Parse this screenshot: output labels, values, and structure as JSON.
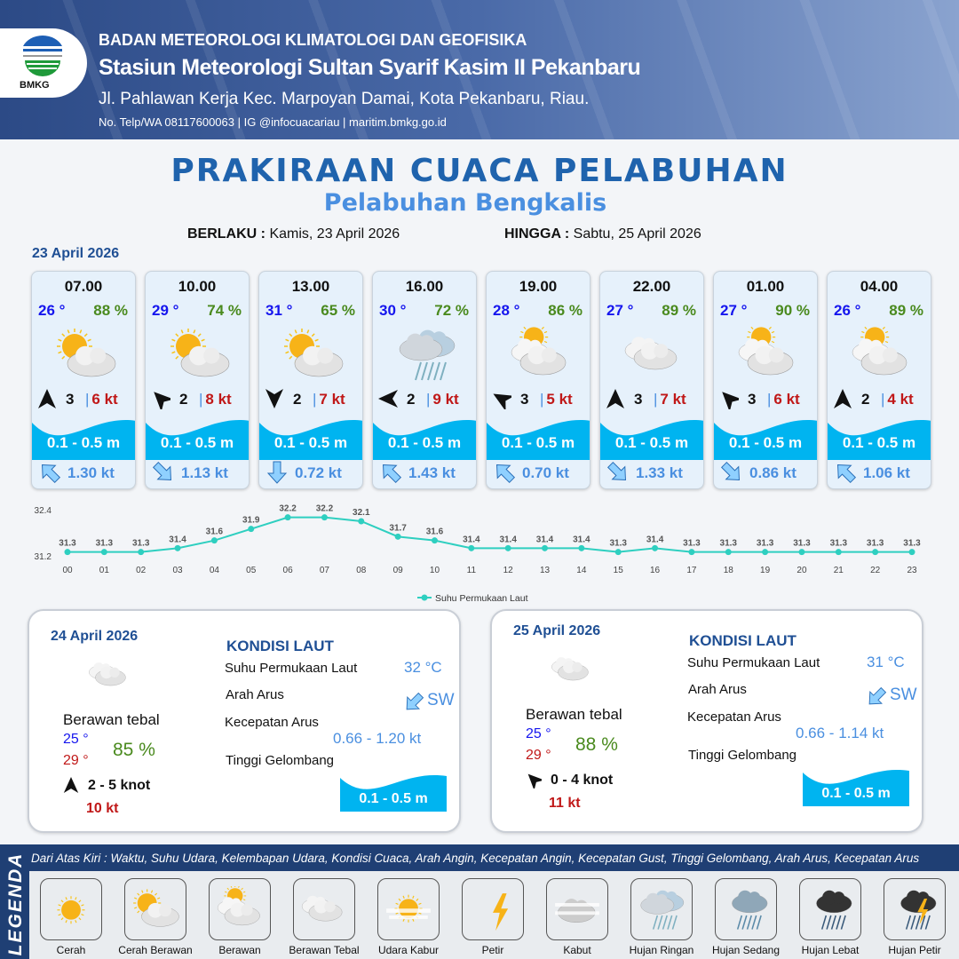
{
  "header": {
    "agency": "BADAN METEOROLOGI KLIMATOLOGI DAN GEOFISIKA",
    "station": "Stasiun Meteorologi Sultan Syarif Kasim II Pekanbaru",
    "address": "Jl. Pahlawan Kerja Kec. Marpoyan Damai, Kota Pekanbaru, Riau.",
    "contact": "No. Telp/WA 08117600063 | IG @infocuacariau | maritim.bmkg.go.id",
    "logo_text": "BMKG"
  },
  "title": "PRAKIRAAN CUACA PELABUHAN",
  "subtitle": "Pelabuhan Bengkalis",
  "validity": {
    "from_label": "BERLAKU :",
    "from": "Kamis, 23 April 2026",
    "to_label": "HINGGA :",
    "to": "Sabtu, 25 April 2026"
  },
  "day1_date": "23 April 2026",
  "forecasts": [
    {
      "time": "07.00",
      "temp": "26 °",
      "hum": "88 %",
      "icon": "cerah-berawan",
      "wind_dir_deg": 0,
      "wind": "3",
      "gust": "6 kt",
      "wave": "0.1 - 0.5 m",
      "cur_dir_deg": 315,
      "cur": "1.30 kt"
    },
    {
      "time": "10.00",
      "temp": "29 °",
      "hum": "74 %",
      "icon": "cerah-berawan",
      "wind_dir_deg": 315,
      "wind": "2",
      "gust": "8 kt",
      "wave": "0.1 - 0.5 m",
      "cur_dir_deg": 135,
      "cur": "1.13 kt"
    },
    {
      "time": "13.00",
      "temp": "31 °",
      "hum": "65 %",
      "icon": "cerah-berawan",
      "wind_dir_deg": 180,
      "wind": "2",
      "gust": "7 kt",
      "wave": "0.1 - 0.5 m",
      "cur_dir_deg": 180,
      "cur": "0.72 kt"
    },
    {
      "time": "16.00",
      "temp": "30 °",
      "hum": "72 %",
      "icon": "hujan-ringan",
      "wind_dir_deg": 270,
      "wind": "2",
      "gust": "9 kt",
      "wave": "0.1 - 0.5 m",
      "cur_dir_deg": 315,
      "cur": "1.43 kt"
    },
    {
      "time": "19.00",
      "temp": "28 °",
      "hum": "86 %",
      "icon": "berawan",
      "wind_dir_deg": 300,
      "wind": "3",
      "gust": "5 kt",
      "wave": "0.1 - 0.5 m",
      "cur_dir_deg": 315,
      "cur": "0.70 kt"
    },
    {
      "time": "22.00",
      "temp": "27 °",
      "hum": "89 %",
      "icon": "berawan-tebal",
      "wind_dir_deg": 0,
      "wind": "3",
      "gust": "7 kt",
      "wave": "0.1 - 0.5 m",
      "cur_dir_deg": 135,
      "cur": "1.33 kt"
    },
    {
      "time": "01.00",
      "temp": "27 °",
      "hum": "90 %",
      "icon": "berawan",
      "wind_dir_deg": 315,
      "wind": "3",
      "gust": "6 kt",
      "wave": "0.1 - 0.5 m",
      "cur_dir_deg": 135,
      "cur": "0.86 kt"
    },
    {
      "time": "04.00",
      "temp": "26 °",
      "hum": "89 %",
      "icon": "berawan",
      "wind_dir_deg": 0,
      "wind": "2",
      "gust": "4 kt",
      "wave": "0.1 - 0.5 m",
      "cur_dir_deg": 315,
      "cur": "1.06 kt"
    }
  ],
  "chart_data": {
    "type": "line",
    "x": [
      "00",
      "01",
      "02",
      "03",
      "04",
      "05",
      "06",
      "07",
      "08",
      "09",
      "10",
      "11",
      "12",
      "13",
      "14",
      "15",
      "16",
      "17",
      "18",
      "19",
      "20",
      "21",
      "22",
      "23"
    ],
    "series": [
      {
        "name": "Suhu Permukaan Laut",
        "values": [
          31.3,
          31.3,
          31.3,
          31.4,
          31.6,
          31.9,
          32.2,
          32.2,
          32.1,
          31.7,
          31.6,
          31.4,
          31.4,
          31.4,
          31.4,
          31.3,
          31.4,
          31.3,
          31.3,
          31.3,
          31.3,
          31.3,
          31.3,
          31.3
        ],
        "color": "#2ecfc0"
      }
    ],
    "yticks": [
      "32.4",
      "31.2"
    ],
    "ylim": [
      31.2,
      32.4
    ],
    "legend": "bottom",
    "grid": false
  },
  "days": [
    {
      "date": "24 April 2026",
      "condition": "Berawan tebal",
      "tmin": "25 °",
      "tmax": "29 °",
      "hum": "85 %",
      "wind_dir_deg": 0,
      "wind": "2 - 5 knot",
      "gust": "10 kt",
      "kondisi_title": "KONDISI LAUT",
      "sst_label": "Suhu Permukaan Laut",
      "sst": "32 °C",
      "arah_label": "Arah Arus",
      "arah": "SW",
      "kec_label": "Kecepatan Arus",
      "kec": "0.66  - 1.20 kt",
      "tinggi_label": "Tinggi Gelombang",
      "wave": "0.1 - 0.5 m"
    },
    {
      "date": "25 April 2026",
      "condition": "Berawan tebal",
      "tmin": "25 °",
      "tmax": "29 °",
      "hum": "88 %",
      "wind_dir_deg": 315,
      "wind": "0  - 4 knot",
      "gust": "11 kt",
      "kondisi_title": "KONDISI LAUT",
      "sst_label": "Suhu Permukaan Laut",
      "sst": "31 °C",
      "arah_label": "Arah Arus",
      "arah": "SW",
      "kec_label": "Kecepatan Arus",
      "kec": "0.66 - 1.14 kt",
      "tinggi_label": "Tinggi Gelombang",
      "wave": "0.1 - 0.5 m"
    }
  ],
  "legend": {
    "title": "LEGENDA",
    "description": "Dari Atas Kiri : Waktu, Suhu Udara, Kelembapan Udara, Kondisi Cuaca, Arah Angin, Kecepatan Angin, Kecepatan Gust, Tinggi Gelombang, Arah Arus, Kecepatan Arus",
    "items": [
      {
        "label": "Cerah",
        "icon": "cerah"
      },
      {
        "label": "Cerah Berawan",
        "icon": "cerah-berawan"
      },
      {
        "label": "Berawan",
        "icon": "berawan"
      },
      {
        "label": "Berawan Tebal",
        "icon": "berawan-tebal"
      },
      {
        "label": "Udara Kabur",
        "icon": "udara-kabur"
      },
      {
        "label": "Petir",
        "icon": "petir"
      },
      {
        "label": "Kabut",
        "icon": "kabut"
      },
      {
        "label": "Hujan Ringan",
        "icon": "hujan-ringan"
      },
      {
        "label": "Hujan Sedang",
        "icon": "hujan-sedang"
      },
      {
        "label": "Hujan Lebat",
        "icon": "hujan-lebat"
      },
      {
        "label": "Hujan Petir",
        "icon": "hujan-petir"
      }
    ]
  },
  "colors": {
    "title": "#1f63ad",
    "sea": "#00b4f0",
    "temp": "#1515ee",
    "humidity": "#4a8a1e",
    "gust": "#c01818",
    "current": "#4a8fe0"
  }
}
